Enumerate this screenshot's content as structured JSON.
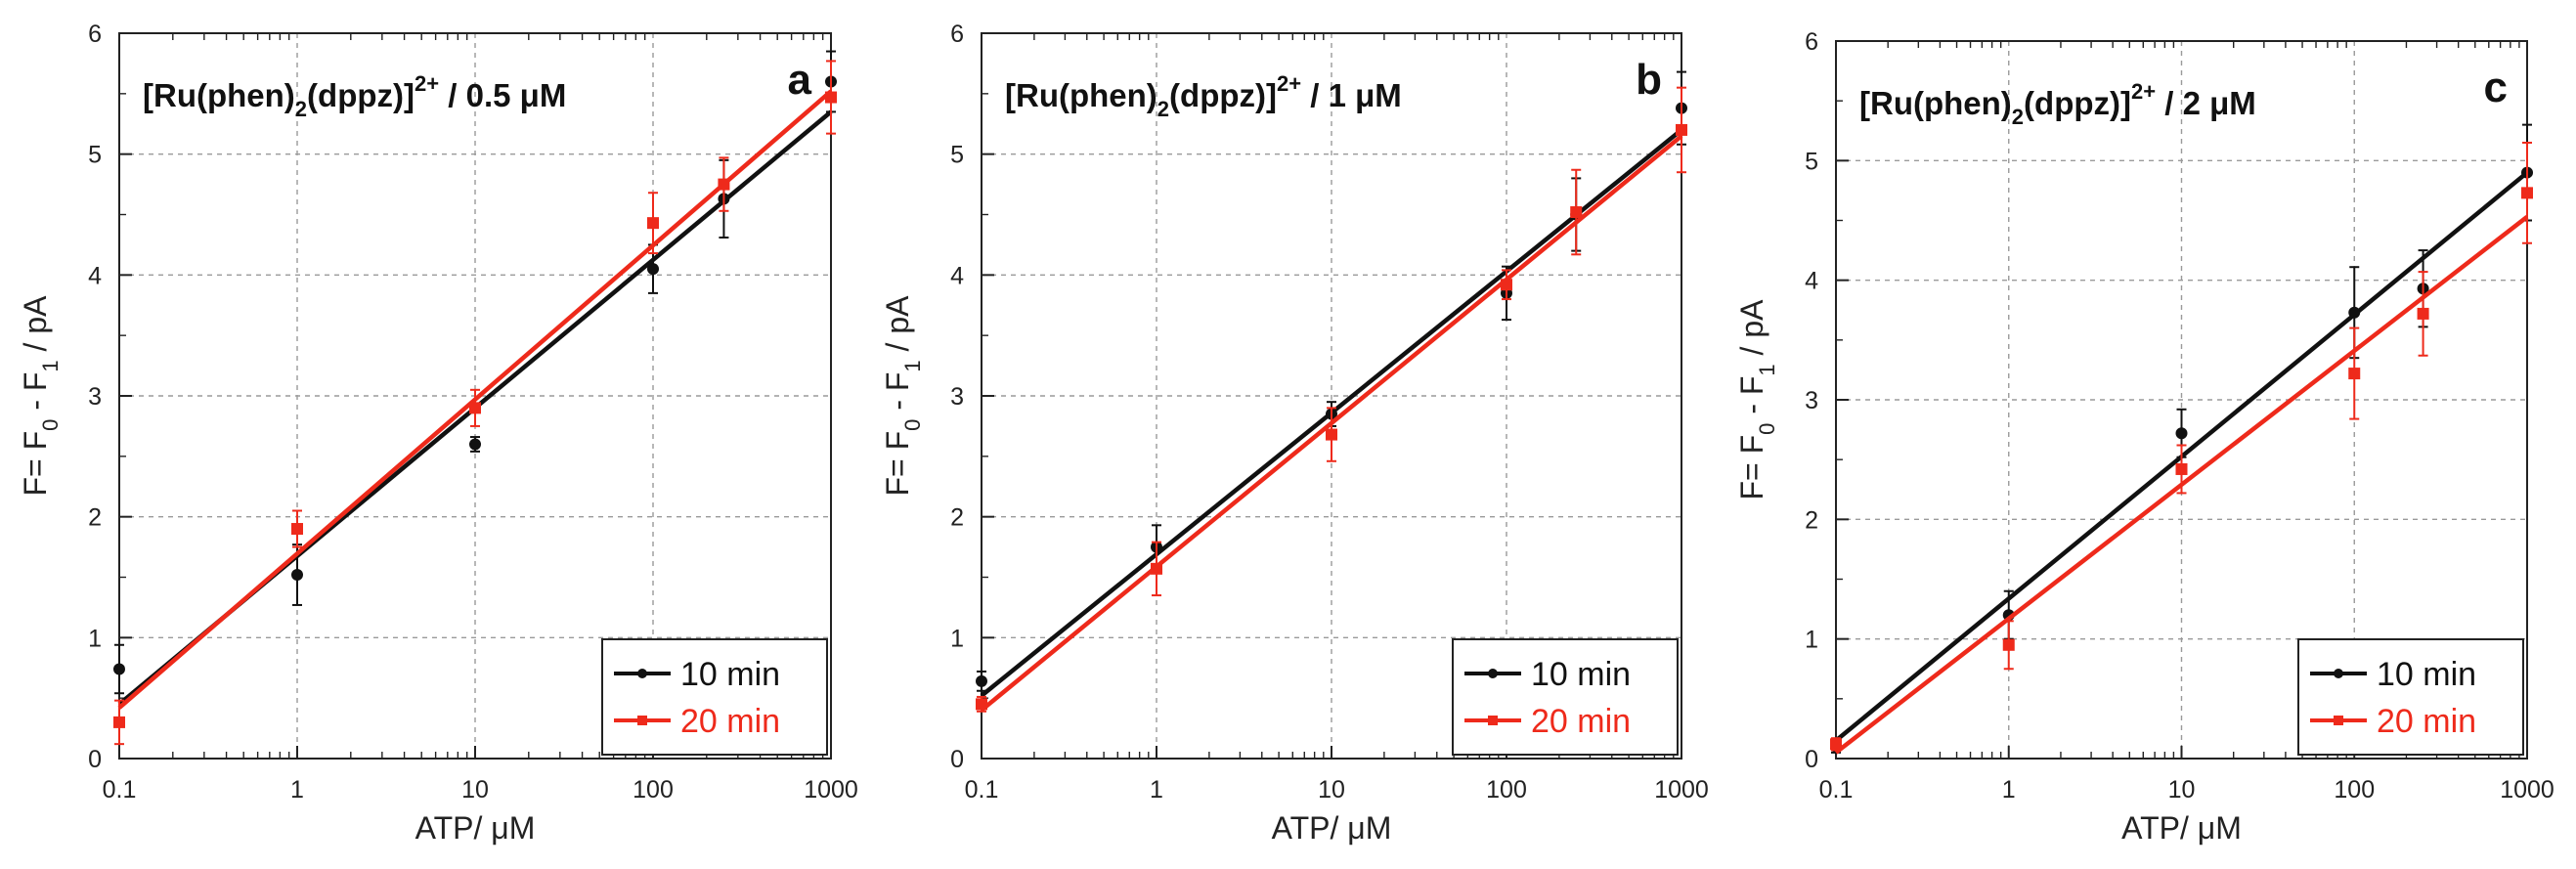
{
  "figure": {
    "x_ticks": [
      0.1,
      1,
      10,
      100,
      1000
    ],
    "x_tick_labels": [
      "0.1",
      "1",
      "10",
      "100",
      "1000"
    ],
    "y_ticks": [
      0,
      1,
      2,
      3,
      4,
      5,
      6
    ],
    "y_tick_labels": [
      "0",
      "1",
      "2",
      "3",
      "4",
      "5",
      "6"
    ],
    "xlabel": "ATP/ μM",
    "ylabel": {
      "main": "F= F",
      "sub0": "0",
      "mid": " - F",
      "sub1": "1",
      "end": " / pA"
    },
    "colors": {
      "black": "#111111",
      "red": "#ee2a1b",
      "grid": "#9a9a9a"
    }
  },
  "chart_data": [
    {
      "type": "scatter",
      "panel_label": "a",
      "title": {
        "main": "[Ru(phen)",
        "sub": "2",
        "mid": "(dppz)]",
        "sup": "2+",
        "end": " / 0.5 μM"
      },
      "x_scale": "log",
      "xlim": [
        0.1,
        1000
      ],
      "ylim": [
        0,
        6
      ],
      "grid": true,
      "legend_position": "bottom-right",
      "series": [
        {
          "name": "10 min",
          "color": "#111111",
          "x": [
            0.1,
            1,
            10,
            100,
            250,
            1000
          ],
          "y": [
            0.74,
            1.52,
            2.6,
            4.05,
            4.63,
            5.6
          ],
          "err": [
            0.2,
            0.25,
            0.06,
            0.2,
            0.32,
            0.25
          ],
          "fit": {
            "x": [
              0.1,
              1000
            ],
            "y": [
              0.45,
              5.35
            ]
          }
        },
        {
          "name": "20 min",
          "color": "#ee2a1b",
          "x": [
            0.1,
            1,
            10,
            100,
            250,
            1000
          ],
          "y": [
            0.3,
            1.9,
            2.9,
            4.43,
            4.75,
            5.47
          ],
          "err": [
            0.18,
            0.15,
            0.15,
            0.25,
            0.22,
            0.3
          ],
          "fit": {
            "x": [
              0.1,
              1000
            ],
            "y": [
              0.42,
              5.52
            ]
          }
        }
      ]
    },
    {
      "type": "scatter",
      "panel_label": "b",
      "title": {
        "main": "[Ru(phen)",
        "sub": "2",
        "mid": "(dppz)]",
        "sup": "2+",
        "end": " / 1 μM"
      },
      "x_scale": "log",
      "xlim": [
        0.1,
        1000
      ],
      "ylim": [
        0,
        6
      ],
      "grid": true,
      "legend_position": "bottom-right",
      "series": [
        {
          "name": "10 min",
          "color": "#111111",
          "x": [
            0.1,
            1,
            10,
            100,
            250,
            1000
          ],
          "y": [
            0.64,
            1.75,
            2.85,
            3.85,
            4.5,
            5.38
          ],
          "err": [
            0.08,
            0.18,
            0.1,
            0.22,
            0.3,
            0.3
          ],
          "fit": {
            "x": [
              0.1,
              1000
            ],
            "y": [
              0.52,
              5.2
            ]
          }
        },
        {
          "name": "20 min",
          "color": "#ee2a1b",
          "x": [
            0.1,
            1,
            10,
            100,
            250,
            1000
          ],
          "y": [
            0.45,
            1.57,
            2.68,
            3.92,
            4.52,
            5.2
          ],
          "err": [
            0.06,
            0.22,
            0.22,
            0.12,
            0.35,
            0.35
          ],
          "fit": {
            "x": [
              0.1,
              1000
            ],
            "y": [
              0.4,
              5.15
            ]
          }
        }
      ]
    },
    {
      "type": "scatter",
      "panel_label": "c",
      "title": {
        "main": "[Ru(phen)",
        "sub": "2",
        "mid": "(dppz)]",
        "sup": "2+",
        "end": " / 2 μM"
      },
      "x_scale": "log",
      "xlim": [
        0.1,
        1000
      ],
      "ylim": [
        0,
        6
      ],
      "grid": true,
      "legend_position": "bottom-right",
      "series": [
        {
          "name": "10 min",
          "color": "#111111",
          "x": [
            0.1,
            1,
            10,
            100,
            250,
            1000
          ],
          "y": [
            0.1,
            1.2,
            2.72,
            3.73,
            3.93,
            4.9
          ],
          "err": [
            0.05,
            0.2,
            0.2,
            0.38,
            0.32,
            0.4
          ],
          "fit": {
            "x": [
              0.1,
              1000
            ],
            "y": [
              0.15,
              4.9
            ]
          }
        },
        {
          "name": "20 min",
          "color": "#ee2a1b",
          "x": [
            0.1,
            1,
            10,
            100,
            250,
            1000
          ],
          "y": [
            0.12,
            0.95,
            2.42,
            3.22,
            3.72,
            4.73
          ],
          "err": [
            0.05,
            0.2,
            0.2,
            0.38,
            0.35,
            0.42
          ],
          "fit": {
            "x": [
              0.1,
              1000
            ],
            "y": [
              0.05,
              4.53
            ]
          }
        }
      ]
    }
  ]
}
